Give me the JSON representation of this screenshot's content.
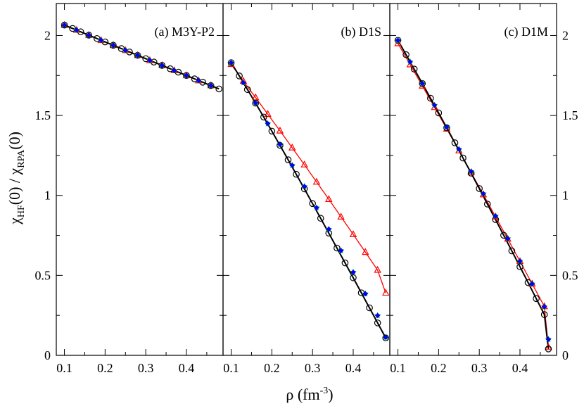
{
  "figure": {
    "ylabel": {
      "chi": "χ",
      "hf": "HF",
      "mid": "(0) / χ",
      "rpa": "RPA",
      "tail": "(0)"
    },
    "xlabel": {
      "rho": "ρ (fm",
      "exp": "-3",
      "close": ")"
    }
  },
  "chart_data": [
    {
      "type": "line",
      "title": "(a) M3Y-P2",
      "xlim": [
        0.08,
        0.49
      ],
      "ylim": [
        0,
        2.2
      ],
      "xticks": [
        0.1,
        0.2,
        0.3,
        0.4
      ],
      "xtick_labels": [
        "0.1",
        "0.2",
        "0.3",
        "0.4"
      ],
      "yticks": [
        0,
        0.5,
        1,
        1.5,
        2
      ],
      "ytick_labels": [
        "0",
        "0.5",
        "1",
        "1.5",
        "2"
      ],
      "series": [
        {
          "marker": "circle",
          "color": "#000000",
          "line": "#000000",
          "x": [
            0.1,
            0.12,
            0.14,
            0.16,
            0.18,
            0.2,
            0.22,
            0.24,
            0.26,
            0.28,
            0.3,
            0.32,
            0.34,
            0.36,
            0.38,
            0.4,
            0.42,
            0.44,
            0.46,
            0.48
          ],
          "y": [
            2.065,
            2.044,
            2.023,
            2.002,
            1.981,
            1.96,
            1.939,
            1.918,
            1.897,
            1.876,
            1.855,
            1.834,
            1.813,
            1.792,
            1.771,
            1.75,
            1.729,
            1.708,
            1.687,
            1.666
          ]
        },
        {
          "marker": "triangle",
          "color": "#ff0000",
          "line": "#ff0000",
          "x": [
            0.1,
            0.13,
            0.16,
            0.19,
            0.22,
            0.25,
            0.28,
            0.31,
            0.34,
            0.37,
            0.4,
            0.43,
            0.46
          ],
          "y": [
            2.065,
            2.034,
            2.002,
            1.97,
            1.939,
            1.907,
            1.876,
            1.844,
            1.813,
            1.781,
            1.75,
            1.718,
            1.687
          ]
        },
        {
          "marker": "star",
          "color": "#00aa00",
          "x": [
            0.1,
            0.13,
            0.16,
            0.19,
            0.22,
            0.25,
            0.28,
            0.31,
            0.34,
            0.37,
            0.4,
            0.43,
            0.46
          ],
          "y": [
            2.065,
            2.034,
            2.002,
            1.97,
            1.939,
            1.907,
            1.876,
            1.844,
            1.813,
            1.781,
            1.75,
            1.718,
            1.687
          ]
        },
        {
          "marker": "diamond",
          "color": "#0000ff",
          "x": [
            0.1,
            0.13,
            0.16,
            0.19,
            0.22,
            0.25,
            0.28,
            0.31,
            0.34,
            0.37,
            0.4,
            0.43,
            0.46
          ],
          "y": [
            2.065,
            2.034,
            2.002,
            1.97,
            1.939,
            1.907,
            1.876,
            1.844,
            1.813,
            1.781,
            1.75,
            1.718,
            1.687
          ]
        }
      ]
    },
    {
      "type": "line",
      "title": "(b) D1S",
      "xlim": [
        0.08,
        0.49
      ],
      "ylim": [
        0,
        2.2
      ],
      "xticks": [
        0.1,
        0.2,
        0.3,
        0.4
      ],
      "xtick_labels": [
        "0.1",
        "0.2",
        "0.3",
        "0.4"
      ],
      "yticks": [
        0,
        0.5,
        1,
        1.5,
        2
      ],
      "series": [
        {
          "marker": "circle",
          "color": "#000000",
          "line": "#000000",
          "x": [
            0.1,
            0.12,
            0.14,
            0.16,
            0.18,
            0.2,
            0.22,
            0.24,
            0.26,
            0.28,
            0.3,
            0.32,
            0.34,
            0.36,
            0.38,
            0.4,
            0.42,
            0.44,
            0.46,
            0.48
          ],
          "y": [
            1.83,
            1.747,
            1.662,
            1.577,
            1.49,
            1.402,
            1.313,
            1.223,
            1.132,
            1.041,
            0.949,
            0.857,
            0.764,
            0.671,
            0.578,
            0.485,
            0.391,
            0.297,
            0.203,
            0.109
          ]
        },
        {
          "marker": "triangle",
          "color": "#ff0000",
          "line": "#ff0000",
          "x": [
            0.1,
            0.13,
            0.16,
            0.19,
            0.22,
            0.25,
            0.28,
            0.31,
            0.34,
            0.37,
            0.4,
            0.43,
            0.46,
            0.48
          ],
          "y": [
            1.82,
            1.715,
            1.612,
            1.508,
            1.404,
            1.298,
            1.192,
            1.084,
            0.976,
            0.866,
            0.756,
            0.645,
            0.533,
            0.39
          ]
        },
        {
          "marker": "star",
          "color": "#00aa00",
          "x": [
            0.1,
            0.13,
            0.16,
            0.19,
            0.22,
            0.25,
            0.28,
            0.31,
            0.34,
            0.37,
            0.4,
            0.43,
            0.46,
            0.48
          ],
          "y": [
            1.83,
            1.705,
            1.578,
            1.449,
            1.319,
            1.188,
            1.056,
            0.923,
            0.789,
            0.655,
            0.52,
            0.385,
            0.249,
            0.113
          ]
        },
        {
          "marker": "diamond",
          "color": "#0000ff",
          "x": [
            0.1,
            0.13,
            0.16,
            0.19,
            0.22,
            0.25,
            0.28,
            0.31,
            0.34,
            0.37,
            0.4,
            0.43,
            0.46,
            0.48
          ],
          "y": [
            1.83,
            1.705,
            1.578,
            1.449,
            1.319,
            1.188,
            1.056,
            0.923,
            0.789,
            0.655,
            0.52,
            0.385,
            0.249,
            0.113
          ]
        }
      ]
    },
    {
      "type": "line",
      "title": "(c) D1M",
      "xlim": [
        0.08,
        0.49
      ],
      "ylim": [
        0,
        2.2
      ],
      "xticks": [
        0.1,
        0.2,
        0.3,
        0.4
      ],
      "xtick_labels": [
        "0.1",
        "0.2",
        "0.3",
        "0.4"
      ],
      "yticks": [
        0,
        0.5,
        1,
        1.5,
        2
      ],
      "right_ytick_labels": [
        "0",
        "0.5",
        "1",
        "1.5",
        "2"
      ],
      "series": [
        {
          "marker": "circle",
          "color": "#000000",
          "line": "#000000",
          "x": [
            0.1,
            0.12,
            0.14,
            0.16,
            0.18,
            0.2,
            0.22,
            0.24,
            0.26,
            0.28,
            0.3,
            0.32,
            0.34,
            0.36,
            0.38,
            0.4,
            0.42,
            0.44,
            0.46,
            0.47
          ],
          "y": [
            1.97,
            1.88,
            1.79,
            1.7,
            1.608,
            1.516,
            1.423,
            1.329,
            1.234,
            1.139,
            1.043,
            0.946,
            0.849,
            0.751,
            0.653,
            0.554,
            0.455,
            0.355,
            0.255,
            0.04
          ]
        },
        {
          "marker": "triangle",
          "color": "#ff0000",
          "line": "#ff0000",
          "x": [
            0.1,
            0.13,
            0.16,
            0.19,
            0.22,
            0.25,
            0.28,
            0.31,
            0.34,
            0.37,
            0.4,
            0.43,
            0.46,
            0.47
          ],
          "y": [
            1.95,
            1.818,
            1.685,
            1.551,
            1.416,
            1.28,
            1.143,
            1.005,
            0.867,
            0.728,
            0.588,
            0.447,
            0.306,
            0.05
          ]
        },
        {
          "marker": "star",
          "color": "#00aa00",
          "x": [
            0.1,
            0.13,
            0.16,
            0.19,
            0.22,
            0.25,
            0.28,
            0.31,
            0.34,
            0.37,
            0.4,
            0.43,
            0.46,
            0.47
          ],
          "y": [
            1.97,
            1.835,
            1.7,
            1.564,
            1.427,
            1.289,
            1.15,
            1.011,
            0.871,
            0.73,
            0.589,
            0.447,
            0.304,
            0.1
          ]
        },
        {
          "marker": "diamond",
          "color": "#0000ff",
          "x": [
            0.1,
            0.13,
            0.16,
            0.19,
            0.22,
            0.25,
            0.28,
            0.31,
            0.34,
            0.37,
            0.4,
            0.43,
            0.46,
            0.47
          ],
          "y": [
            1.97,
            1.835,
            1.7,
            1.564,
            1.427,
            1.289,
            1.15,
            1.011,
            0.871,
            0.73,
            0.589,
            0.447,
            0.304,
            0.1
          ]
        }
      ]
    }
  ]
}
